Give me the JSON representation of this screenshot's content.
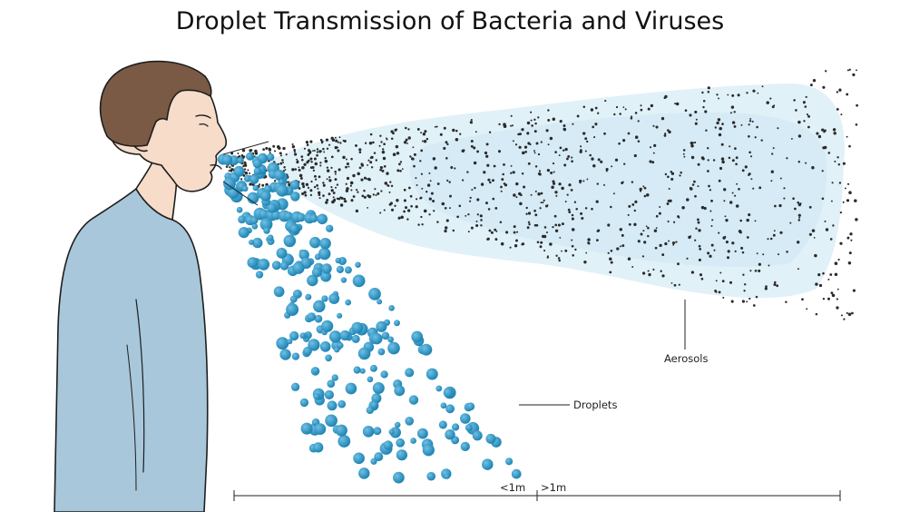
{
  "title": "Droplet Transmission of Bacteria and Viruses",
  "labels": {
    "aerosols": "Aerosols",
    "droplets": "Droplets"
  },
  "distance_scale": {
    "near": "<1m",
    "far": ">1m"
  },
  "colors": {
    "droplet": "#2a93c1",
    "aerosol": "#2b2b2b",
    "aerosol_cloud": "#dff0f8",
    "shirt": "#a9c8dc",
    "skin": "#f6dcc9",
    "hair": "#7a5a44"
  },
  "icons": {
    "person": "person-profile-illustration"
  }
}
